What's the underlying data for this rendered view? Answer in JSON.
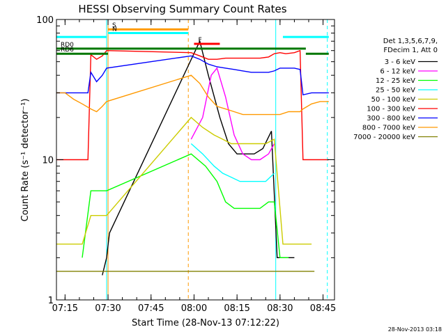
{
  "chart_data": {
    "type": "line",
    "title": "HESSI Observing Summary Count Rates",
    "xlabel": "Start Time (28-Nov-13 07:12:22)",
    "ylabel": "Count Rate (s⁻¹ detector⁻¹)",
    "yscale": "log",
    "ylim": [
      1,
      100
    ],
    "xlim": [
      "07:12",
      "08:49"
    ],
    "x_ticks": [
      "07:15",
      "07:30",
      "07:45",
      "08:00",
      "08:15",
      "08:30",
      "08:45"
    ],
    "y_ticks": [
      "1",
      "10",
      "100"
    ],
    "grid": false,
    "legend_placement": "right",
    "legend_header": [
      "Det 1,3,5,6,7,9,",
      "FDecim 1, Att 0"
    ],
    "timestamp": "28-Nov-2013 03:18",
    "series": [
      {
        "name": "3 - 6 keV",
        "color": "#000000",
        "points": [
          [
            "07:28",
            1.5
          ],
          [
            "07:29.5",
            2
          ],
          [
            "07:30.5",
            3
          ],
          [
            "08:02",
            70
          ],
          [
            "08:05",
            40
          ],
          [
            "08:09",
            20
          ],
          [
            "08:12",
            13
          ],
          [
            "08:15",
            11
          ],
          [
            "08:18",
            11
          ],
          [
            "08:21",
            11
          ],
          [
            "08:24",
            12
          ],
          [
            "08:27",
            16
          ],
          [
            "08:29",
            2
          ],
          [
            "08:33",
            2
          ],
          [
            "08:35",
            2
          ]
        ]
      },
      {
        "name": "6 - 12 keV",
        "color": "#ff00ff",
        "points": [
          [
            "07:59",
            14
          ],
          [
            "08:03",
            20
          ],
          [
            "08:06",
            40
          ],
          [
            "08:08",
            45
          ],
          [
            "08:11",
            28
          ],
          [
            "08:14",
            15
          ],
          [
            "08:17",
            11
          ],
          [
            "08:20",
            10
          ],
          [
            "08:23",
            10
          ],
          [
            "08:26",
            11
          ],
          [
            "08:28",
            13
          ]
        ]
      },
      {
        "name": "12 - 25 keV",
        "color": "#00ff00",
        "points": [
          [
            "07:21",
            2
          ],
          [
            "07:24",
            6
          ],
          [
            "07:27",
            6
          ],
          [
            "07:29.5",
            6
          ],
          [
            "07:59",
            11
          ],
          [
            "08:04",
            9
          ],
          [
            "08:08",
            7
          ],
          [
            "08:11",
            5
          ],
          [
            "08:14",
            4.5
          ],
          [
            "08:17",
            4.5
          ],
          [
            "08:20",
            4.5
          ],
          [
            "08:23",
            4.5
          ],
          [
            "08:26",
            5
          ],
          [
            "08:28",
            5
          ],
          [
            "08:30",
            2
          ],
          [
            "08:33",
            2
          ]
        ]
      },
      {
        "name": "25 - 50 keV",
        "color": "#00ffff",
        "points": [
          [
            "07:59",
            13
          ],
          [
            "08:03",
            11
          ],
          [
            "08:07",
            9
          ],
          [
            "08:10",
            8
          ],
          [
            "08:13",
            7.5
          ],
          [
            "08:16",
            7
          ],
          [
            "08:19",
            7
          ],
          [
            "08:22",
            7
          ],
          [
            "08:25",
            7
          ],
          [
            "08:28",
            8
          ]
        ]
      },
      {
        "name": "50 - 100 keV",
        "color": "#cccc00",
        "points": [
          [
            "07:12",
            2.5
          ],
          [
            "07:15",
            2.5
          ],
          [
            "07:18",
            2.5
          ],
          [
            "07:21",
            2.5
          ],
          [
            "07:24",
            4
          ],
          [
            "07:27",
            4
          ],
          [
            "07:29.5",
            4
          ],
          [
            "07:59",
            20
          ],
          [
            "08:03",
            17
          ],
          [
            "08:07",
            15
          ],
          [
            "08:10",
            14
          ],
          [
            "08:13",
            13
          ],
          [
            "08:16",
            13
          ],
          [
            "08:19",
            13
          ],
          [
            "08:22",
            13
          ],
          [
            "08:25",
            13
          ],
          [
            "08:28",
            14
          ],
          [
            "08:31",
            2.5
          ],
          [
            "08:35",
            2.5
          ],
          [
            "08:38",
            2.5
          ],
          [
            "08:41",
            2.5
          ]
        ]
      },
      {
        "name": "100 - 300 keV",
        "color": "#ff0000",
        "points": [
          [
            "07:12",
            10
          ],
          [
            "07:15",
            10
          ],
          [
            "07:18",
            10
          ],
          [
            "07:21",
            10
          ],
          [
            "07:23",
            10
          ],
          [
            "07:24",
            56
          ],
          [
            "07:26",
            52
          ],
          [
            "07:28",
            55
          ],
          [
            "07:29.5",
            60
          ],
          [
            "07:59",
            58
          ],
          [
            "08:02",
            55
          ],
          [
            "08:05",
            52
          ],
          [
            "08:08",
            52
          ],
          [
            "08:11",
            53
          ],
          [
            "08:14",
            53
          ],
          [
            "08:17",
            53
          ],
          [
            "08:20",
            53
          ],
          [
            "08:23",
            53
          ],
          [
            "08:26",
            54
          ],
          [
            "08:28",
            57
          ],
          [
            "08:30",
            58
          ],
          [
            "08:32",
            57
          ],
          [
            "08:35",
            58
          ],
          [
            "08:37",
            60
          ],
          [
            "08:38",
            10
          ],
          [
            "08:41",
            10
          ],
          [
            "08:44",
            10
          ],
          [
            "08:47",
            10
          ]
        ]
      },
      {
        "name": "300 - 800 keV",
        "color": "#0000ff",
        "points": [
          [
            "07:12",
            30
          ],
          [
            "07:15",
            30
          ],
          [
            "07:18",
            30
          ],
          [
            "07:21",
            30
          ],
          [
            "07:23",
            30
          ],
          [
            "07:24",
            42
          ],
          [
            "07:26",
            36
          ],
          [
            "07:28",
            40
          ],
          [
            "07:29.5",
            45
          ],
          [
            "07:59",
            55
          ],
          [
            "08:02",
            52
          ],
          [
            "08:05",
            48
          ],
          [
            "08:08",
            46
          ],
          [
            "08:11",
            45
          ],
          [
            "08:14",
            44
          ],
          [
            "08:17",
            43
          ],
          [
            "08:20",
            42
          ],
          [
            "08:23",
            42
          ],
          [
            "08:26",
            42
          ],
          [
            "08:28",
            43
          ],
          [
            "08:30",
            45
          ],
          [
            "08:33",
            45
          ],
          [
            "08:35",
            45
          ],
          [
            "08:37",
            44
          ],
          [
            "08:38",
            29
          ],
          [
            "08:41",
            30
          ],
          [
            "08:44",
            30
          ],
          [
            "08:47",
            30
          ]
        ]
      },
      {
        "name": "800 - 7000 keV",
        "color": "#ff9900",
        "points": [
          [
            "07:12",
            30
          ],
          [
            "07:15",
            30
          ],
          [
            "07:18",
            27
          ],
          [
            "07:21",
            25
          ],
          [
            "07:24",
            23
          ],
          [
            "07:26",
            22
          ],
          [
            "07:28",
            24
          ],
          [
            "07:29.5",
            26
          ],
          [
            "07:59",
            40
          ],
          [
            "08:02",
            35
          ],
          [
            "08:05",
            28
          ],
          [
            "08:08",
            24
          ],
          [
            "08:11",
            23
          ],
          [
            "08:14",
            22
          ],
          [
            "08:17",
            21
          ],
          [
            "08:20",
            21
          ],
          [
            "08:23",
            21
          ],
          [
            "08:26",
            21
          ],
          [
            "08:28",
            21
          ],
          [
            "08:30",
            21
          ],
          [
            "08:33",
            22
          ],
          [
            "08:35",
            22
          ],
          [
            "08:37",
            22
          ],
          [
            "08:38",
            23
          ],
          [
            "08:41",
            25
          ],
          [
            "08:44",
            26
          ],
          [
            "08:47",
            26
          ]
        ]
      },
      {
        "name": "7000 - 20000 keV",
        "color": "#808000",
        "points": [
          [
            "07:12",
            1.6
          ],
          [
            "07:15",
            1.6
          ],
          [
            "07:18",
            1.6
          ],
          [
            "07:21",
            1.6
          ],
          [
            "07:24",
            1.6
          ],
          [
            "07:27",
            1.6
          ],
          [
            "07:29.5",
            1.6
          ],
          [
            "07:59",
            1.6
          ],
          [
            "08:03",
            1.6
          ],
          [
            "08:06",
            1.6
          ],
          [
            "08:27",
            1.6
          ],
          [
            "08:30",
            1.6
          ],
          [
            "08:33",
            1.6
          ],
          [
            "08:36",
            1.6
          ],
          [
            "08:39",
            1.6
          ],
          [
            "08:42",
            1.6
          ]
        ]
      }
    ],
    "flag_bars": [
      {
        "label": "",
        "color": "#00ffff",
        "level": 75,
        "start": "07:12",
        "end": "07:29.5"
      },
      {
        "label": "",
        "color": "#00ffff",
        "level": 75,
        "start": "08:31",
        "end": "08:47"
      },
      {
        "label": "S",
        "color": "#ff9900",
        "level": 85,
        "start": "07:30",
        "end": "07:58"
      },
      {
        "label": "N",
        "color": "#00ffff",
        "level": 80,
        "start": "07:30",
        "end": "07:58"
      },
      {
        "label": "F",
        "color": "#ff0000",
        "level": 67,
        "start": "08:00",
        "end": "08:09"
      },
      {
        "label": "RD0",
        "color": "#007700",
        "level": 62,
        "start": "07:12",
        "end": "08:39"
      },
      {
        "label": "RD6",
        "color": "#007700",
        "level": 57,
        "start": "07:12",
        "end": "07:30"
      },
      {
        "label": "",
        "color": "#007700",
        "level": 57,
        "start": "08:39",
        "end": "08:47"
      }
    ],
    "vlines": [
      {
        "t": "07:29.5",
        "color": "#00ffff",
        "style": "solid"
      },
      {
        "t": "07:30",
        "color": "#ff9900",
        "style": "solid"
      },
      {
        "t": "07:58",
        "color": "#ff9900",
        "style": "dashed"
      },
      {
        "t": "08:28.5",
        "color": "#00ffff",
        "style": "solid"
      },
      {
        "t": "08:46.5",
        "color": "#00ffff",
        "style": "dashed"
      }
    ]
  }
}
